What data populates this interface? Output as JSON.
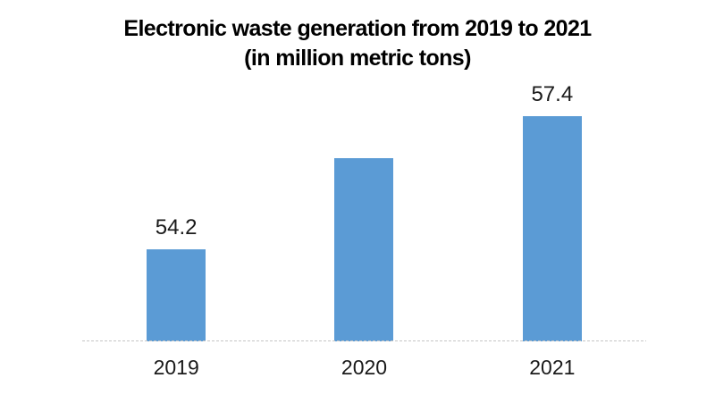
{
  "title": {
    "line1": "Electronic waste generation from 2019 to 2021",
    "line2": "(in million metric tons)"
  },
  "chart_data": {
    "type": "bar",
    "title": "Electronic waste generation from 2019 to 2021 (in million metric tons)",
    "categories": [
      "2019",
      "2020",
      "2021"
    ],
    "values": [
      54.2,
      56.4,
      57.4
    ],
    "data_labels": [
      "54.2",
      "",
      "57.4"
    ],
    "xlabel": "",
    "ylabel": "",
    "ylim": [
      52,
      58
    ],
    "y_axis_shown": false,
    "grid": false,
    "legend": false
  },
  "colors": {
    "bar": "#5B9BD5",
    "title_text": "#000000",
    "label_text": "#1a1a1a",
    "axis_line": "#c6c6c6",
    "background": "#ffffff"
  }
}
